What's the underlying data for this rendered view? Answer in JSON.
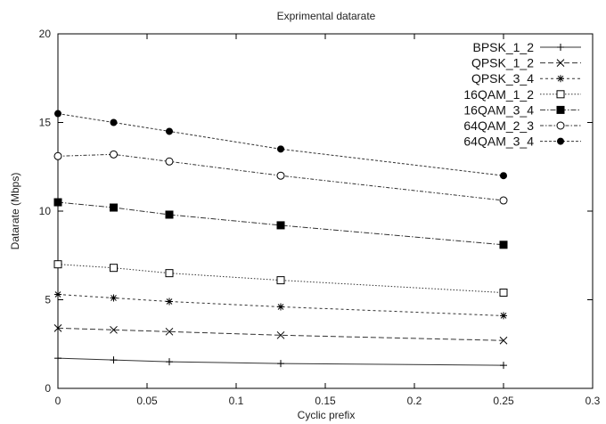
{
  "chart_data": {
    "type": "line",
    "title": "Exprimental datarate",
    "xlabel": "Cyclic prefix",
    "ylabel": "Datarate (Mbps)",
    "xlim": [
      0,
      0.3
    ],
    "ylim": [
      0,
      20
    ],
    "xticks": [
      "0",
      "0.05",
      "0.1",
      "0.15",
      "0.2",
      "0.25",
      "0.3"
    ],
    "yticks": [
      "0",
      "5",
      "10",
      "15",
      "20"
    ],
    "grid": false,
    "legend_position": "top-right",
    "x": [
      0,
      0.03125,
      0.0625,
      0.125,
      0.25
    ],
    "series": [
      {
        "name": "BPSK_1_2",
        "marker": "plus",
        "dash": "solid",
        "values": [
          1.7,
          1.6,
          1.5,
          1.4,
          1.3
        ]
      },
      {
        "name": "QPSK_1_2",
        "marker": "cross",
        "dash": "longdash",
        "values": [
          3.4,
          3.3,
          3.2,
          3.0,
          2.7
        ]
      },
      {
        "name": "QPSK_3_4",
        "marker": "star",
        "dash": "shortdash",
        "values": [
          5.3,
          5.1,
          4.9,
          4.6,
          4.1
        ]
      },
      {
        "name": "16QAM_1_2",
        "marker": "open-square",
        "dash": "dotted",
        "values": [
          7.0,
          6.8,
          6.5,
          6.1,
          5.4
        ]
      },
      {
        "name": "16QAM_3_4",
        "marker": "filled-square",
        "dash": "dashdot",
        "values": [
          10.5,
          10.2,
          9.8,
          9.2,
          8.1
        ]
      },
      {
        "name": "64QAM_2_3",
        "marker": "open-circle",
        "dash": "dashdot2",
        "values": [
          13.1,
          13.2,
          12.8,
          12.0,
          10.6
        ]
      },
      {
        "name": "64QAM_3_4",
        "marker": "filled-circle",
        "dash": "dashed",
        "values": [
          15.5,
          15.0,
          14.5,
          13.5,
          12.0
        ]
      }
    ]
  }
}
